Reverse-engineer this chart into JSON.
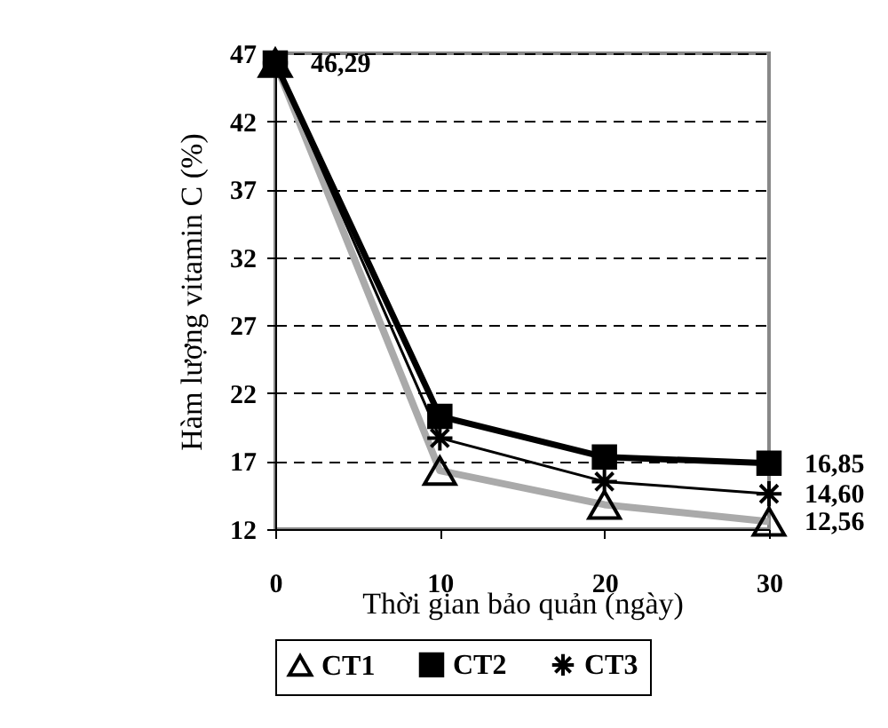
{
  "chart_data": {
    "type": "line",
    "xlabel": "Thời gian bảo quản (ngày)",
    "ylabel": "Hàm lượng vitamin C (%)",
    "x": [
      0,
      10,
      20,
      30
    ],
    "series": [
      {
        "name": "CT1",
        "color": "#aaaaaa",
        "marker": "triangle",
        "values": [
          46.29,
          16.3,
          13.8,
          12.56
        ],
        "value_labels": [
          null,
          null,
          null,
          "12,56"
        ]
      },
      {
        "name": "CT2",
        "color": "#000000",
        "marker": "square",
        "values": [
          46.29,
          20.3,
          17.3,
          16.85
        ],
        "value_labels": [
          "46,29",
          null,
          null,
          "16,85"
        ]
      },
      {
        "name": "CT3",
        "color": "#000000",
        "marker": "cross",
        "values": [
          46.29,
          18.7,
          15.5,
          14.6
        ],
        "value_labels": [
          null,
          null,
          null,
          "14,60"
        ]
      }
    ],
    "xlim": [
      0,
      30
    ],
    "xticks": [
      0,
      10,
      20,
      30
    ],
    "ylim": [
      12,
      47
    ],
    "yticks": [
      12,
      17,
      22,
      27,
      32,
      37,
      42,
      47
    ],
    "grid": "y",
    "legend": "bottom"
  }
}
